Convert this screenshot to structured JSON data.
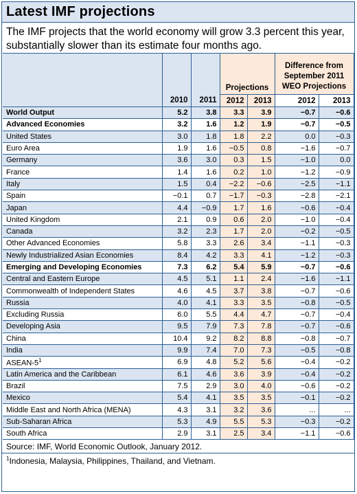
{
  "title": "Latest IMF projections",
  "subtitle": "The IMF projects that the world economy will grow 3.3 percent this year, substantially slower than its estimate four months ago.",
  "header": {
    "projections": "Projections",
    "difference": "Difference from September 2011 WEO Projections",
    "years": [
      "2010",
      "2011",
      "2012",
      "2013",
      "2012",
      "2013"
    ]
  },
  "rows": [
    {
      "label": "World Output",
      "v": [
        "5.2",
        "3.8",
        "3.3",
        "3.9",
        "−0.7",
        "−0.6"
      ]
    },
    {
      "label": "Advanced Economies",
      "v": [
        "3.2",
        "1.6",
        "1.2",
        "1.9",
        "−0.7",
        "−0.5"
      ]
    },
    {
      "label": "United States",
      "v": [
        "3.0",
        "1.8",
        "1.8",
        "2.2",
        "0.0",
        "−0.3"
      ]
    },
    {
      "label": "Euro Area",
      "v": [
        "1.9",
        "1.6",
        "−0.5",
        "0.8",
        "−1.6",
        "−0.7"
      ]
    },
    {
      "label": "Germany",
      "v": [
        "3.6",
        "3.0",
        "0.3",
        "1.5",
        "−1.0",
        "0.0"
      ]
    },
    {
      "label": "France",
      "v": [
        "1.4",
        "1.6",
        "0.2",
        "1.0",
        "−1.2",
        "−0.9"
      ]
    },
    {
      "label": "Italy",
      "v": [
        "1.5",
        "0.4",
        "−2.2",
        "−0.6",
        "−2.5",
        "−1.1"
      ]
    },
    {
      "label": "Spain",
      "v": [
        "−0.1",
        "0.7",
        "−1.7",
        "−0.3",
        "−2.8",
        "−2.1"
      ]
    },
    {
      "label": "Japan",
      "v": [
        "4.4",
        "−0.9",
        "1.7",
        "1.6",
        "−0.6",
        "−0.4"
      ]
    },
    {
      "label": "United Kingdom",
      "v": [
        "2.1",
        "0.9",
        "0.6",
        "2.0",
        "−1.0",
        "−0.4"
      ]
    },
    {
      "label": "Canada",
      "v": [
        "3.2",
        "2.3",
        "1.7",
        "2.0",
        "−0.2",
        "−0.5"
      ]
    },
    {
      "label": "Other Advanced Economies",
      "v": [
        "5.8",
        "3.3",
        "2.6",
        "3.4",
        "−1.1",
        "−0.3"
      ]
    },
    {
      "label": "Newly Industrialized Asian Economies",
      "v": [
        "8.4",
        "4.2",
        "3.3",
        "4.1",
        "−1.2",
        "−0.3"
      ]
    },
    {
      "label": "Emerging and Developing Economies",
      "v": [
        "7.3",
        "6.2",
        "5.4",
        "5.9",
        "−0.7",
        "−0.6"
      ]
    },
    {
      "label": "Central and Eastern Europe",
      "v": [
        "4.5",
        "5.1",
        "1.1",
        "2.4",
        "−1.6",
        "−1.1"
      ]
    },
    {
      "label": "Commonwealth of Independent States",
      "v": [
        "4.6",
        "4.5",
        "3.7",
        "3.8",
        "−0.7",
        "−0.6"
      ]
    },
    {
      "label": "Russia",
      "v": [
        "4.0",
        "4.1",
        "3.3",
        "3.5",
        "−0.8",
        "−0.5"
      ]
    },
    {
      "label": "Excluding Russia",
      "v": [
        "6.0",
        "5.5",
        "4.4",
        "4.7",
        "−0.7",
        "−0.4"
      ]
    },
    {
      "label": "Developing Asia",
      "v": [
        "9.5",
        "7.9",
        "7.3",
        "7.8",
        "−0.7",
        "−0.6"
      ]
    },
    {
      "label": "China",
      "v": [
        "10.4",
        "9.2",
        "8.2",
        "8.8",
        "−0.8",
        "−0.7"
      ]
    },
    {
      "label": "India",
      "v": [
        "9.9",
        "7.4",
        "7.0",
        "7.3",
        "−0.5",
        "−0.8"
      ]
    },
    {
      "label": "ASEAN-5",
      "sup": "1",
      "v": [
        "6.9",
        "4.8",
        "5.2",
        "5.6",
        "−0.4",
        "−0.2"
      ]
    },
    {
      "label": "Latin America and the Caribbean",
      "v": [
        "6.1",
        "4.6",
        "3.6",
        "3.9",
        "−0.4",
        "−0.2"
      ]
    },
    {
      "label": "Brazil",
      "v": [
        "7.5",
        "2.9",
        "3.0",
        "4.0",
        "−0.6",
        "−0.2"
      ]
    },
    {
      "label": "Mexico",
      "v": [
        "5.4",
        "4.1",
        "3.5",
        "3.5",
        "−0.1",
        "−0.2"
      ]
    },
    {
      "label": "Middle East and North Africa (MENA)",
      "v": [
        "4.3",
        "3.1",
        "3.2",
        "3.6",
        "...",
        "..."
      ]
    },
    {
      "label": "Sub-Saharan Africa",
      "v": [
        "5.3",
        "4.9",
        "5.5",
        "5.3",
        "−0.3",
        "−0.2"
      ]
    },
    {
      "label": "South Africa",
      "v": [
        "2.9",
        "3.1",
        "2.5",
        "3.4",
        "−1.1",
        "−0.6"
      ]
    }
  ],
  "bold_rows": [
    0,
    1,
    13
  ],
  "source": "Source: IMF, World Economic Outlook, January 2012.",
  "footnote_mark": "1",
  "footnote": "Indonesia, Malaysia, Philippines, Thailand, and Vietnam.",
  "colors": {
    "border": "#2b5f95",
    "blue_fill": "#dbe5f1",
    "peach_fill": "#fde9d9"
  }
}
